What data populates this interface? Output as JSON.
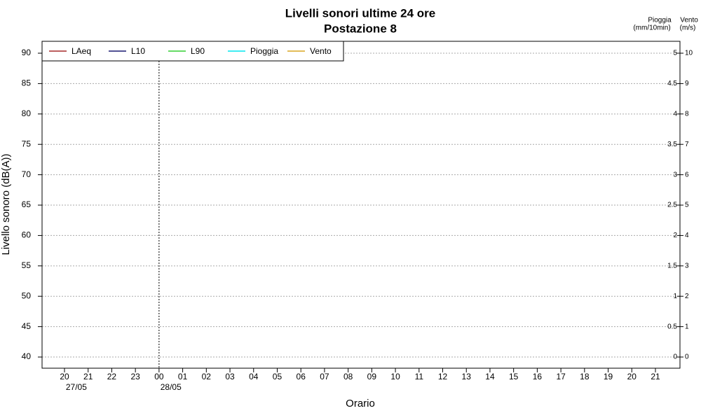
{
  "chart_data": {
    "type": "line",
    "title": "Livelli sonori ultime 24 ore",
    "subtitle": "Postazione 8",
    "xlabel": "Orario",
    "ylabel": "Livello sonoro (dB(A))",
    "categories": [
      "20",
      "21",
      "22",
      "23",
      "00",
      "01",
      "02",
      "03",
      "04",
      "05",
      "06",
      "07",
      "08",
      "09",
      "10",
      "11",
      "12",
      "13",
      "14",
      "15",
      "16",
      "17",
      "18",
      "19",
      "20",
      "21"
    ],
    "date_labels": [
      "27/05",
      "28/05"
    ],
    "ylim": [
      38.16,
      91.96
    ],
    "yticks": [
      40,
      45,
      50,
      55,
      60,
      65,
      70,
      75,
      80,
      85,
      90
    ],
    "y2label": [
      "Pioggia",
      "(mm/10min)"
    ],
    "y2lim": [
      -0.184,
      5.196
    ],
    "y2ticks": [
      0,
      0.5,
      1,
      1.5,
      2,
      2.5,
      3,
      3.5,
      4,
      4.5,
      5
    ],
    "y3label": [
      "Vento",
      "(m/s)"
    ],
    "y3lim": [
      -0.368,
      10.392
    ],
    "y3ticks": [
      0,
      1,
      2,
      3,
      4,
      5,
      6,
      7,
      8,
      9,
      10
    ],
    "grid": true,
    "legend": "top-left",
    "series": [
      {
        "name": "LAeq",
        "color": "#a52a2a",
        "values": [
          null,
          null,
          null,
          null,
          null,
          null,
          null,
          null,
          null,
          null,
          null,
          null,
          null,
          null,
          null,
          null,
          null,
          null,
          null,
          null,
          null,
          null,
          null,
          null,
          null,
          null
        ]
      },
      {
        "name": "L10",
        "color": "#191970",
        "values": [
          null,
          null,
          null,
          null,
          null,
          null,
          null,
          null,
          null,
          null,
          null,
          null,
          null,
          null,
          null,
          null,
          null,
          null,
          null,
          null,
          null,
          null,
          null,
          null,
          null,
          null
        ]
      },
      {
        "name": "L90",
        "color": "#32cd32",
        "values": [
          null,
          null,
          null,
          null,
          null,
          null,
          null,
          null,
          null,
          null,
          null,
          null,
          null,
          null,
          null,
          null,
          null,
          null,
          null,
          null,
          null,
          null,
          null,
          null,
          null,
          null
        ]
      },
      {
        "name": "Pioggia",
        "color": "#00e5ee",
        "axis": "y2",
        "values": [
          null,
          null,
          null,
          null,
          null,
          null,
          null,
          null,
          null,
          null,
          null,
          null,
          null,
          null,
          null,
          null,
          null,
          null,
          null,
          null,
          null,
          null,
          null,
          null,
          null,
          null
        ]
      },
      {
        "name": "Vento",
        "color": "#daa520",
        "axis": "y3",
        "values": [
          null,
          null,
          null,
          null,
          null,
          null,
          null,
          null,
          null,
          null,
          null,
          null,
          null,
          null,
          null,
          null,
          null,
          null,
          null,
          null,
          null,
          null,
          null,
          null,
          null,
          null
        ]
      }
    ]
  }
}
